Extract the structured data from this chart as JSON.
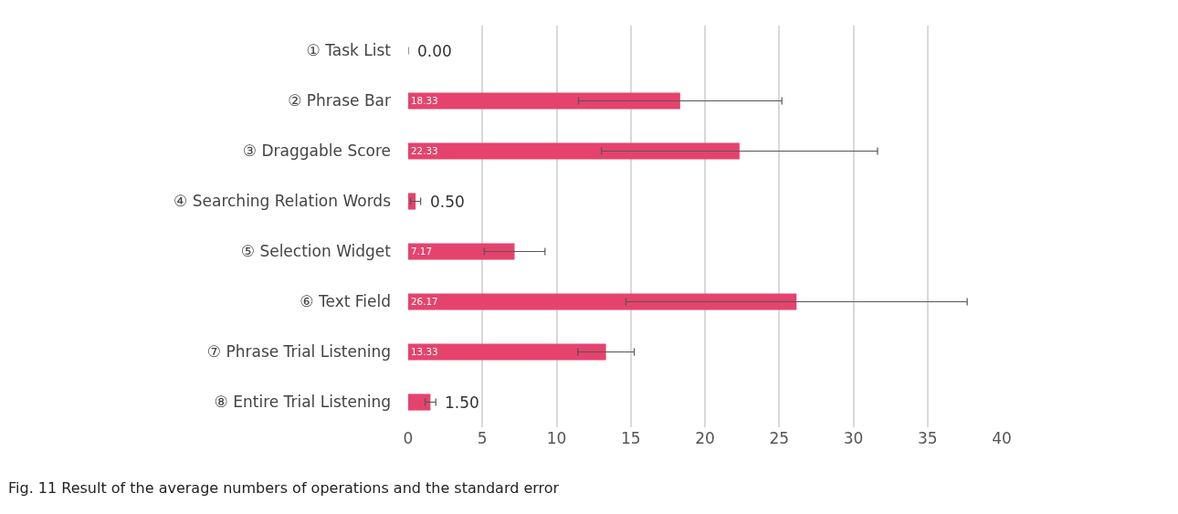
{
  "chart_data": {
    "type": "bar",
    "orientation": "horizontal",
    "categories": [
      "① Task List",
      "② Phrase Bar",
      "③ Draggable Score",
      "④ Searching Relation Words",
      "⑤ Selection Widget",
      "⑥ Text Field",
      "⑦ Phrase Trial Listening",
      "⑧ Entire Trial Listening"
    ],
    "values": [
      0.0,
      18.33,
      22.33,
      0.5,
      7.17,
      26.17,
      13.33,
      1.5
    ],
    "value_labels": [
      "0.00",
      "18.33",
      "22.33",
      "0.50",
      "7.17",
      "26.17",
      "13.33",
      "1.50"
    ],
    "errors": [
      null,
      6.85,
      9.3,
      0.34,
      2.05,
      11.5,
      1.9,
      0.36
    ],
    "color": "#e5436d",
    "xlim": [
      0,
      40
    ],
    "xticks": [
      0,
      5,
      10,
      15,
      20,
      25,
      30,
      35,
      40
    ],
    "grid": "x",
    "annotations": [
      "Fig. 11 Result of the average numbers of operations and the standard error"
    ]
  }
}
